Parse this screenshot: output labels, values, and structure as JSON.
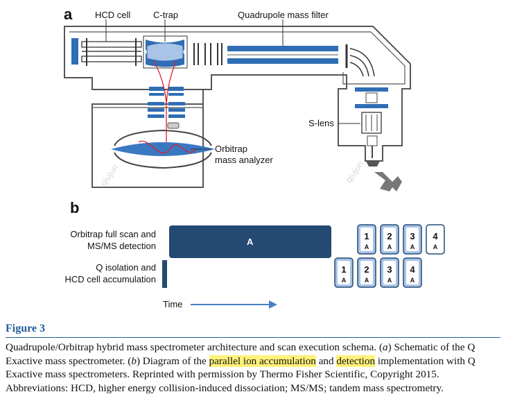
{
  "panel_a": {
    "letter": "a",
    "labels": {
      "hcd_cell": "HCD cell",
      "c_trap": "C-trap",
      "quadrupole": "Quadrupole mass filter",
      "s_lens": "S-lens",
      "orbitrap_line1": "Orbitrap",
      "orbitrap_line2": "mass analyzer"
    }
  },
  "panel_b": {
    "letter": "b",
    "row1_line1": "Orbitrap full scan and",
    "row1_line2": "MS/MS detection",
    "row2_line1": "Q isolation and",
    "row2_line2": "HCD cell accumulation",
    "time_label": "Time",
    "big_box_label": "A",
    "top_boxes": [
      {
        "num": "1",
        "sub": "A"
      },
      {
        "num": "2",
        "sub": "A"
      },
      {
        "num": "3",
        "sub": "A"
      },
      {
        "num": "4",
        "sub": "A"
      }
    ],
    "bottom_boxes": [
      {
        "num": "1",
        "sub": "A"
      },
      {
        "num": "2",
        "sub": "A"
      },
      {
        "num": "3",
        "sub": "A"
      },
      {
        "num": "4",
        "sub": "A"
      }
    ]
  },
  "caption": {
    "title": "Figure 3",
    "p1": "Quadrupole/Orbitrap hybrid mass spectrometer architecture and scan execution schema. (",
    "p2": "a",
    "p3": ") Schematic of the Q Exactive mass spectrometer. (",
    "p4": "b",
    "p5": ") Diagram of the ",
    "h1": "parallel ion accumulation",
    "p6": " and ",
    "h2": "detection",
    "p7": " implementation with Q Exactive mass spectrometers. Reprinted with permission by Thermo Fisher Scientific, Copyright 2015. Abbreviations: HCD, higher energy collision-induced dissociation; MS/MS; tandem mass spectrometry."
  },
  "colors": {
    "accent_blue": "#2f6db5",
    "light_blue": "#a9c4e6",
    "dark_navy": "#244a73",
    "trap_blue": "#3a78c2",
    "figure_title_blue": "#1f5a9a",
    "highlight": "#fff27a",
    "ion_path_red": "#d8222a"
  },
  "watermark": "qiujun"
}
